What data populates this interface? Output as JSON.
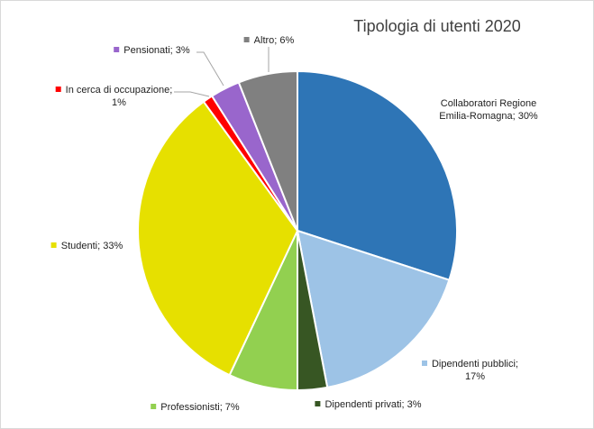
{
  "chart_data": {
    "type": "pie",
    "title": "Tipologia di utenti 2020",
    "start_angle_deg": 0,
    "direction": "clockwise",
    "slices": [
      {
        "key": "collab",
        "label_lines": [
          "Collaboratori  Regione",
          "Emilia-Romagna; 30%"
        ],
        "value": 30,
        "color": "#2e75b6"
      },
      {
        "key": "pubblici",
        "label_lines": [
          "Dipendenti pubblici;",
          "17%"
        ],
        "value": 17,
        "color": "#9dc3e6"
      },
      {
        "key": "privati",
        "label_lines": [
          "Dipendenti privati; 3%"
        ],
        "value": 3,
        "color": "#375623"
      },
      {
        "key": "professionisti",
        "label_lines": [
          "Professionisti; 7%"
        ],
        "value": 7,
        "color": "#92d050"
      },
      {
        "key": "studenti",
        "label_lines": [
          "Studenti; 33%"
        ],
        "value": 33,
        "color": "#e6e000"
      },
      {
        "key": "cerca",
        "label_lines": [
          "In cerca di occupazione;",
          "1%"
        ],
        "value": 1,
        "color": "#ff0000"
      },
      {
        "key": "pensionati",
        "label_lines": [
          "Pensionati; 3%"
        ],
        "value": 3,
        "color": "#9966cc"
      },
      {
        "key": "altro",
        "label_lines": [
          "Altro; 6%"
        ],
        "value": 6,
        "color": "#808080"
      }
    ]
  }
}
